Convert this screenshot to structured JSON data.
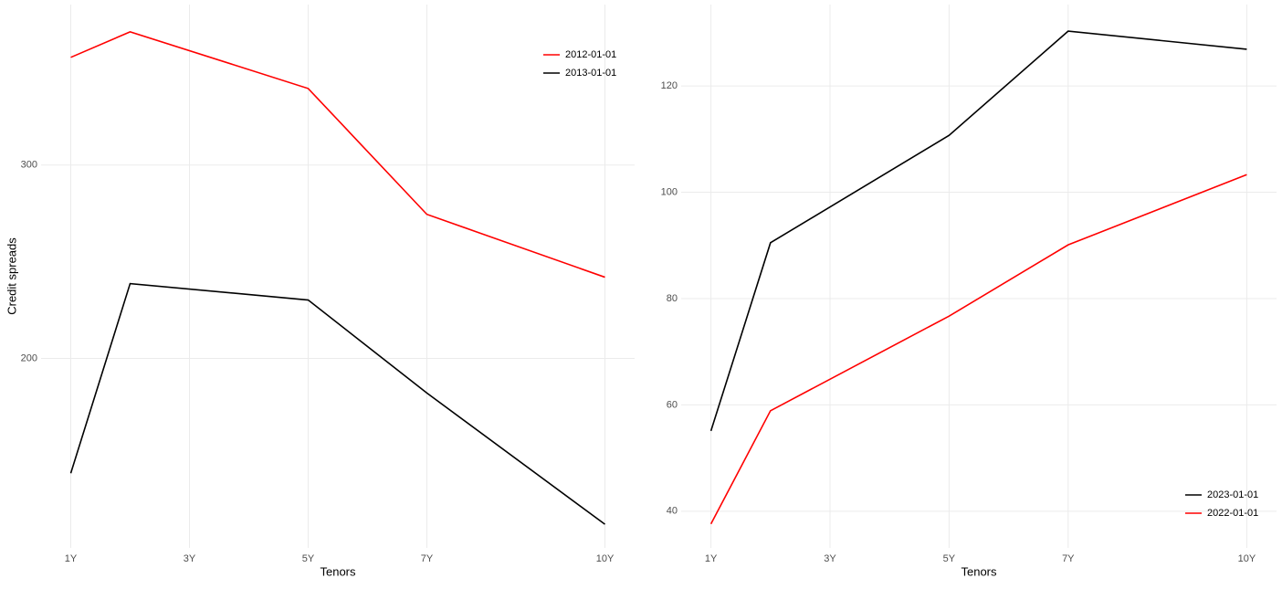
{
  "chart_data": [
    {
      "type": "line",
      "x_label": "Tenors",
      "y_label": "Credit spreads",
      "x": [
        1,
        2,
        5,
        7,
        10
      ],
      "xlim": [
        0.5,
        10.5
      ],
      "xticks": [
        {
          "value": 1,
          "label": "1Y"
        },
        {
          "value": 3,
          "label": "3Y"
        },
        {
          "value": 5,
          "label": "5Y"
        },
        {
          "value": 7,
          "label": "7Y"
        },
        {
          "value": 10,
          "label": "10Y"
        }
      ],
      "ylim": [
        102,
        383
      ],
      "yticks": [
        200,
        300
      ],
      "grid": true,
      "legend": "top-right",
      "series": [
        {
          "name": "2012-01-01",
          "color": "#ff0000",
          "values": [
            355.7,
            368.9,
            339.6,
            274.5,
            242
          ]
        },
        {
          "name": "2013-01-01",
          "color": "#000000",
          "values": [
            140.6,
            238.7,
            230.2,
            182.1,
            114.2
          ]
        }
      ]
    },
    {
      "type": "line",
      "x_label": "Tenors",
      "x": [
        1,
        2,
        5,
        7,
        10
      ],
      "xlim": [
        0.5,
        10.5
      ],
      "xticks": [
        {
          "value": 1,
          "label": "1Y"
        },
        {
          "value": 3,
          "label": "3Y"
        },
        {
          "value": 5,
          "label": "5Y"
        },
        {
          "value": 7,
          "label": "7Y"
        },
        {
          "value": 10,
          "label": "10Y"
        }
      ],
      "ylim": [
        33.1,
        135.3
      ],
      "yticks": [
        40,
        60,
        80,
        100,
        120
      ],
      "grid": true,
      "legend": "bottom-right",
      "series": [
        {
          "name": "2023-01-01",
          "color": "#000000",
          "values": [
            55.1,
            90.5,
            110.7,
            130.3,
            126.9
          ]
        },
        {
          "name": "2022-01-01",
          "color": "#ff0000",
          "values": [
            37.6,
            58.9,
            76.7,
            90.1,
            103.3
          ]
        }
      ]
    }
  ]
}
